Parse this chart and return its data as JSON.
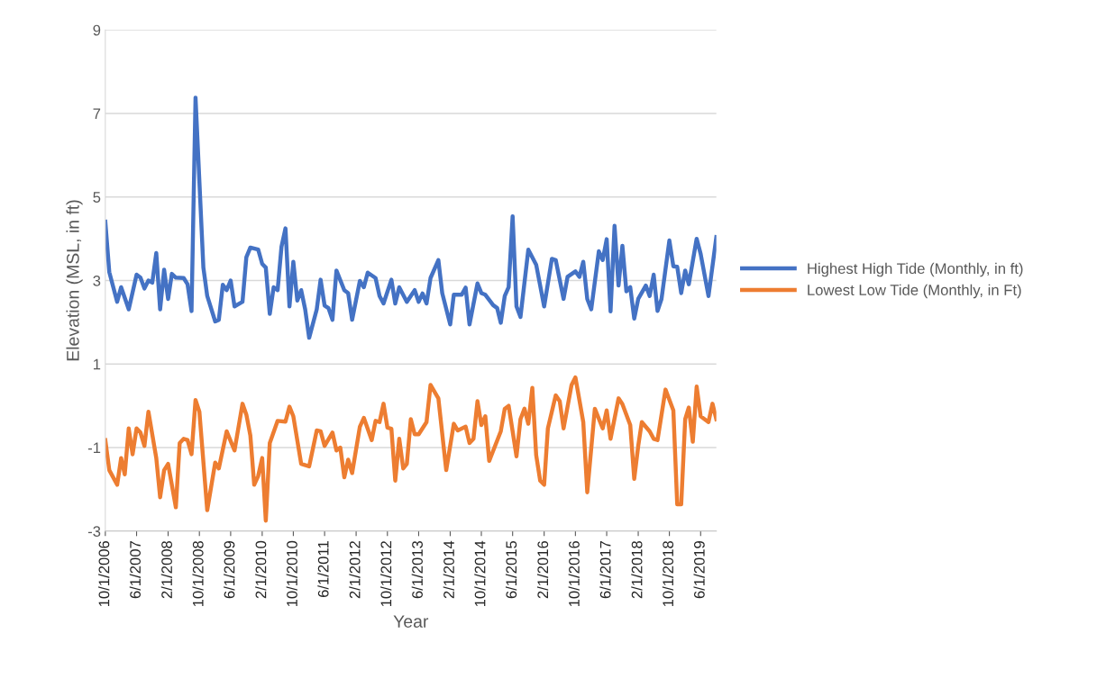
{
  "chart_data": {
    "type": "line",
    "xlabel": "Year",
    "ylabel": "Elevation (MSL, in ft)",
    "xlim": [
      "2006-10-01",
      "2019-10-01"
    ],
    "ylim": [
      -3,
      9
    ],
    "yticks": [
      -3,
      -1,
      1,
      3,
      5,
      7,
      9
    ],
    "xticks": [
      {
        "value": "2006-10-01",
        "label": "10/1/2006"
      },
      {
        "value": "2007-06-01",
        "label": "6/1/2007"
      },
      {
        "value": "2008-02-01",
        "label": "2/1/2008"
      },
      {
        "value": "2008-10-01",
        "label": "10/1/2008"
      },
      {
        "value": "2009-06-01",
        "label": "6/1/2009"
      },
      {
        "value": "2010-02-01",
        "label": "2/1/2010"
      },
      {
        "value": "2010-10-01",
        "label": "10/1/2010"
      },
      {
        "value": "2011-06-01",
        "label": "6/1/2011"
      },
      {
        "value": "2012-02-01",
        "label": "2/1/2012"
      },
      {
        "value": "2012-10-01",
        "label": "10/1/2012"
      },
      {
        "value": "2013-06-01",
        "label": "6/1/2013"
      },
      {
        "value": "2014-02-01",
        "label": "2/1/2014"
      },
      {
        "value": "2014-10-01",
        "label": "10/1/2014"
      },
      {
        "value": "2015-06-01",
        "label": "6/1/2015"
      },
      {
        "value": "2016-02-01",
        "label": "2/1/2016"
      },
      {
        "value": "2016-10-01",
        "label": "10/1/2016"
      },
      {
        "value": "2017-06-01",
        "label": "6/1/2017"
      },
      {
        "value": "2018-02-01",
        "label": "2/1/2018"
      },
      {
        "value": "2018-10-01",
        "label": "10/1/2018"
      },
      {
        "value": "2019-06-01",
        "label": "6/1/2019"
      }
    ],
    "grid": "y",
    "legend": "right",
    "marker": "none",
    "line_style": "solid",
    "series": [
      {
        "name": "Highest High Tide (Monthly, in ft)",
        "color": "#4472c4",
        "x": [
          "2006-10",
          "2006-11",
          "2007-01",
          "2007-02",
          "2007-04",
          "2007-06",
          "2007-07",
          "2007-08",
          "2007-09",
          "2007-10",
          "2007-11",
          "2007-12",
          "2008-01",
          "2008-02",
          "2008-03",
          "2008-04",
          "2008-06",
          "2008-07",
          "2008-08",
          "2008-09",
          "2008-11",
          "2008-12",
          "2009-02",
          "2009-03",
          "2009-04",
          "2009-05",
          "2009-06",
          "2009-07",
          "2009-09",
          "2009-10",
          "2009-11",
          "2010-01",
          "2010-02",
          "2010-03",
          "2010-04",
          "2010-05",
          "2010-06",
          "2010-07",
          "2010-08",
          "2010-09",
          "2010-10",
          "2010-11",
          "2010-12",
          "2011-01",
          "2011-02",
          "2011-04",
          "2011-05",
          "2011-06",
          "2011-07",
          "2011-08",
          "2011-09",
          "2011-11",
          "2011-12",
          "2012-01",
          "2012-03",
          "2012-04",
          "2012-05",
          "2012-07",
          "2012-08",
          "2012-09",
          "2012-11",
          "2012-12",
          "2013-01",
          "2013-03",
          "2013-05",
          "2013-06",
          "2013-07",
          "2013-08",
          "2013-09",
          "2013-11",
          "2013-12",
          "2014-02",
          "2014-03",
          "2014-05",
          "2014-06",
          "2014-07",
          "2014-09",
          "2014-10",
          "2014-11",
          "2015-01",
          "2015-02",
          "2015-03",
          "2015-04",
          "2015-05",
          "2015-06",
          "2015-07",
          "2015-08",
          "2015-10",
          "2015-12",
          "2016-02",
          "2016-04",
          "2016-05",
          "2016-07",
          "2016-08",
          "2016-10",
          "2016-11",
          "2016-12",
          "2017-01",
          "2017-02",
          "2017-04",
          "2017-05",
          "2017-06",
          "2017-07",
          "2017-08",
          "2017-09",
          "2017-10",
          "2017-11",
          "2017-12",
          "2018-01",
          "2018-02",
          "2018-04",
          "2018-05",
          "2018-06",
          "2018-07",
          "2018-08",
          "2018-10",
          "2018-11",
          "2018-12",
          "2019-01",
          "2019-02",
          "2019-03",
          "2019-05",
          "2019-06",
          "2019-08",
          "2019-10"
        ],
        "values": [
          4.41,
          3.2,
          2.49,
          2.84,
          2.31,
          3.14,
          3.07,
          2.81,
          3.0,
          2.95,
          3.66,
          2.31,
          3.26,
          2.56,
          3.16,
          3.07,
          3.06,
          2.91,
          2.27,
          7.38,
          3.31,
          2.63,
          2.02,
          2.06,
          2.9,
          2.77,
          3.0,
          2.38,
          2.49,
          3.56,
          3.79,
          3.74,
          3.4,
          3.31,
          2.2,
          2.84,
          2.77,
          3.81,
          4.25,
          2.38,
          3.45,
          2.52,
          2.77,
          2.31,
          1.63,
          2.31,
          3.02,
          2.4,
          2.34,
          2.06,
          3.24,
          2.77,
          2.7,
          2.06,
          2.99,
          2.84,
          3.19,
          3.06,
          2.63,
          2.45,
          3.02,
          2.45,
          2.84,
          2.49,
          2.77,
          2.49,
          2.69,
          2.45,
          3.06,
          3.49,
          2.7,
          1.95,
          2.66,
          2.66,
          2.83,
          1.95,
          2.93,
          2.7,
          2.66,
          2.41,
          2.34,
          1.99,
          2.63,
          2.84,
          4.54,
          2.38,
          2.13,
          3.74,
          3.38,
          2.38,
          3.52,
          3.49,
          2.56,
          3.09,
          3.22,
          3.09,
          3.45,
          2.56,
          2.31,
          3.7,
          3.49,
          3.99,
          2.26,
          4.31,
          2.88,
          3.83,
          2.74,
          2.84,
          2.09,
          2.56,
          2.88,
          2.63,
          3.14,
          2.27,
          2.56,
          3.96,
          3.34,
          3.33,
          2.7,
          3.24,
          2.91,
          4.0,
          3.64,
          2.63,
          4.04
        ]
      },
      {
        "name": "Lowest Low Tide (Monthly, in Ft)",
        "color": "#ed7d31",
        "x": [
          "2006-10",
          "2006-11",
          "2007-01",
          "2007-02",
          "2007-03",
          "2007-04",
          "2007-05",
          "2007-06",
          "2007-07",
          "2007-08",
          "2007-09",
          "2007-11",
          "2007-12",
          "2008-01",
          "2008-02",
          "2008-04",
          "2008-05",
          "2008-06",
          "2008-07",
          "2008-08",
          "2008-09",
          "2008-10",
          "2008-12",
          "2009-02",
          "2009-03",
          "2009-05",
          "2009-07",
          "2009-09",
          "2009-10",
          "2009-11",
          "2009-12",
          "2010-01",
          "2010-02",
          "2010-03",
          "2010-04",
          "2010-06",
          "2010-08",
          "2010-09",
          "2010-10",
          "2010-12",
          "2011-02",
          "2011-04",
          "2011-05",
          "2011-06",
          "2011-08",
          "2011-09",
          "2011-10",
          "2011-11",
          "2011-12",
          "2012-01",
          "2012-03",
          "2012-04",
          "2012-06",
          "2012-07",
          "2012-08",
          "2012-09",
          "2012-10",
          "2012-11",
          "2012-12",
          "2013-01",
          "2013-02",
          "2013-03",
          "2013-04",
          "2013-05",
          "2013-06",
          "2013-08",
          "2013-09",
          "2013-11",
          "2014-01",
          "2014-03",
          "2014-04",
          "2014-06",
          "2014-07",
          "2014-08",
          "2014-09",
          "2014-10",
          "2014-11",
          "2014-12",
          "2015-03",
          "2015-04",
          "2015-05",
          "2015-06",
          "2015-07",
          "2015-08",
          "2015-09",
          "2015-10",
          "2015-11",
          "2015-12",
          "2016-01",
          "2016-02",
          "2016-03",
          "2016-05",
          "2016-06",
          "2016-07",
          "2016-09",
          "2016-10",
          "2016-12",
          "2017-01",
          "2017-03",
          "2017-05",
          "2017-06",
          "2017-07",
          "2017-09",
          "2017-10",
          "2017-12",
          "2018-01",
          "2018-02",
          "2018-03",
          "2018-05",
          "2018-06",
          "2018-07",
          "2018-09",
          "2018-11",
          "2018-12",
          "2019-01",
          "2019-02",
          "2019-03",
          "2019-04",
          "2019-05",
          "2019-06",
          "2019-08",
          "2019-09",
          "2019-10"
        ],
        "values": [
          -0.82,
          -1.54,
          -1.89,
          -1.25,
          -1.64,
          -0.54,
          -1.16,
          -0.54,
          -0.64,
          -0.96,
          -0.14,
          -1.25,
          -2.19,
          -1.54,
          -1.39,
          -2.43,
          -0.89,
          -0.79,
          -0.82,
          -1.16,
          0.14,
          -0.14,
          -2.5,
          -1.36,
          -1.5,
          -0.61,
          -1.07,
          0.05,
          -0.21,
          -0.71,
          -1.89,
          -1.68,
          -1.25,
          -2.75,
          -0.89,
          -0.36,
          -0.38,
          -0.02,
          -0.25,
          -1.39,
          -1.45,
          -0.59,
          -0.61,
          -0.96,
          -0.64,
          -1.07,
          -1.0,
          -1.71,
          -1.29,
          -1.61,
          -0.5,
          -0.29,
          -0.82,
          -0.36,
          -0.39,
          0.05,
          -0.52,
          -0.55,
          -1.79,
          -0.79,
          -1.5,
          -1.39,
          -0.32,
          -0.68,
          -0.68,
          -0.39,
          0.5,
          0.18,
          -1.54,
          -0.43,
          -0.59,
          -0.5,
          -0.89,
          -0.79,
          0.11,
          -0.46,
          -0.25,
          -1.32,
          -0.61,
          -0.07,
          0.0,
          -0.61,
          -1.21,
          -0.32,
          -0.07,
          -0.43,
          0.43,
          -1.18,
          -1.79,
          -1.89,
          -0.54,
          0.25,
          0.11,
          -0.54,
          0.5,
          0.68,
          -0.39,
          -2.07,
          -0.07,
          -0.54,
          -0.11,
          -0.79,
          0.18,
          0.04,
          -0.46,
          -1.75,
          -0.96,
          -0.39,
          -0.61,
          -0.79,
          -0.82,
          0.39,
          -0.11,
          -2.36,
          -2.36,
          -0.32,
          -0.04,
          -0.86,
          0.46,
          -0.25,
          -0.39,
          0.05,
          -0.32
        ]
      }
    ]
  }
}
